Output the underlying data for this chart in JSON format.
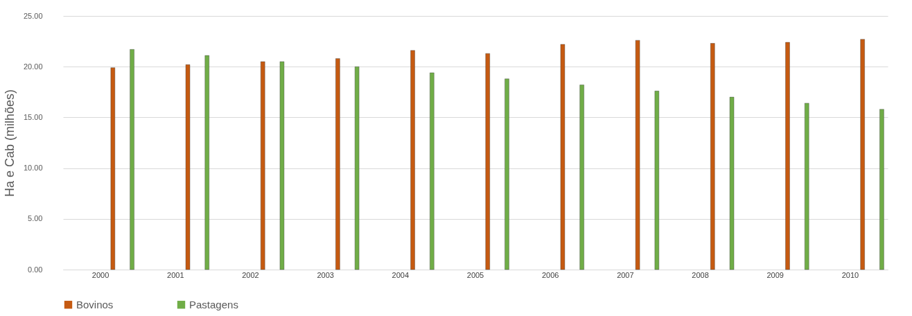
{
  "chart_data": {
    "type": "bar",
    "ylabel": "Ha e Cab (milhões)",
    "categories": [
      "2000",
      "2001",
      "2002",
      "2003",
      "2004",
      "2005",
      "2006",
      "2007",
      "2008",
      "2009",
      "2010"
    ],
    "series": [
      {
        "name": "Bovinos",
        "color": "#c55a11",
        "values": [
          19.9,
          20.2,
          20.5,
          20.8,
          21.6,
          21.3,
          22.2,
          22.6,
          22.3,
          22.4,
          22.7
        ]
      },
      {
        "name": "Pastagens",
        "color": "#70ad47",
        "values": [
          21.7,
          21.1,
          20.5,
          20.0,
          19.4,
          18.8,
          18.2,
          17.6,
          17.0,
          16.4,
          15.8
        ]
      }
    ],
    "ylim": [
      0,
      25
    ],
    "yticks": [
      {
        "value": 0,
        "label": "0.00"
      },
      {
        "value": 5,
        "label": "5.00"
      },
      {
        "value": 10,
        "label": "10.00"
      },
      {
        "value": 15,
        "label": "15.00"
      },
      {
        "value": 20,
        "label": "20.00"
      },
      {
        "value": 25,
        "label": "25.00"
      }
    ],
    "grid": "y",
    "legend": "bottom"
  }
}
